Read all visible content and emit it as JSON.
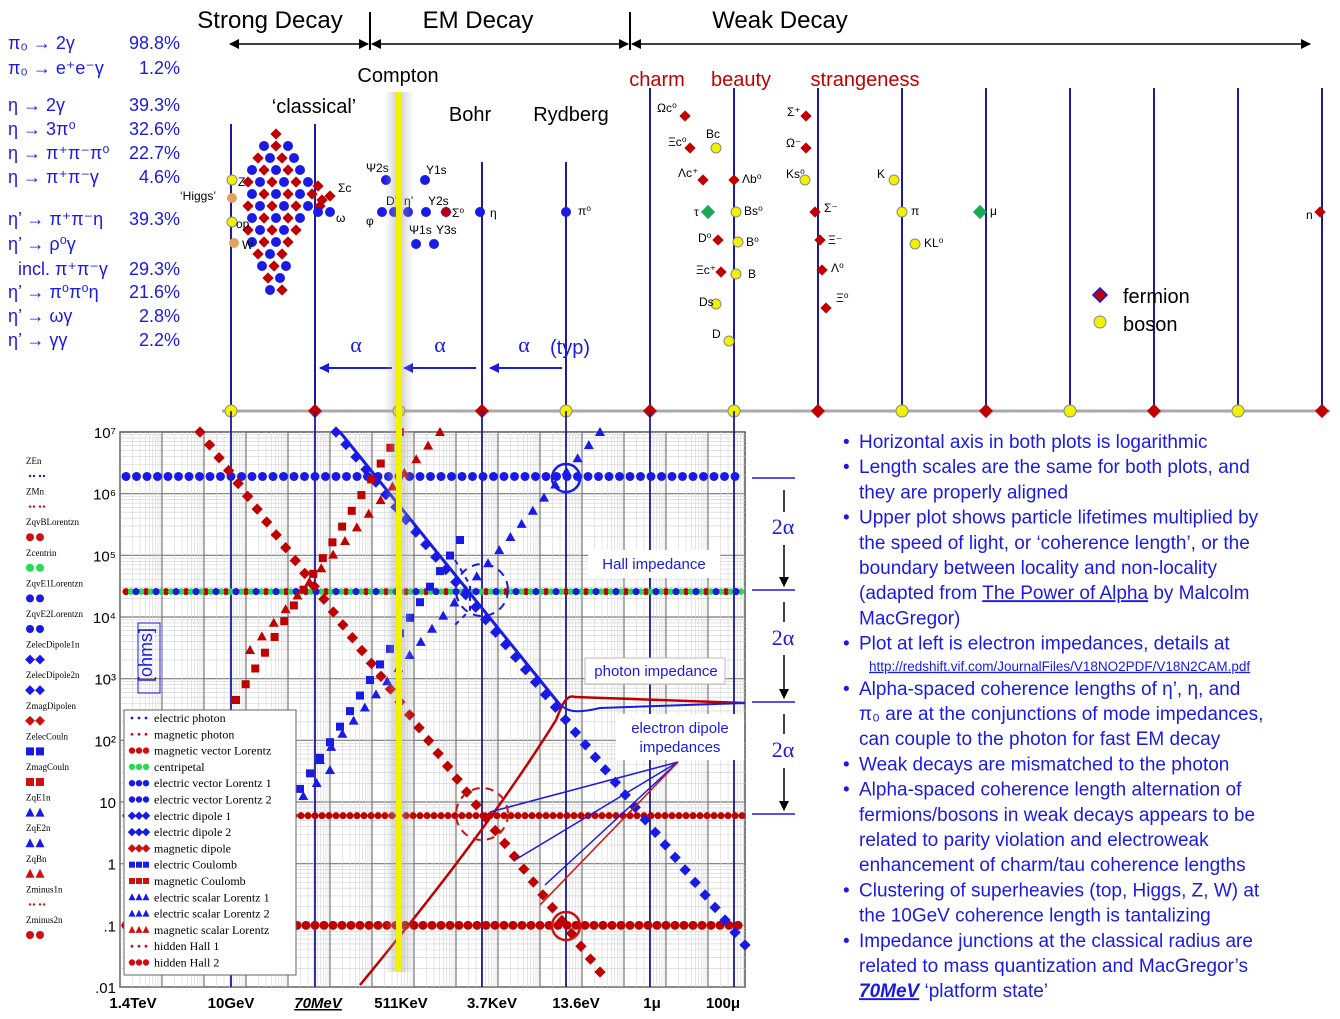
{
  "header": {
    "strong": "Strong Decay",
    "em": "EM Decay",
    "weak": "Weak Decay",
    "compton": "Compton",
    "classical": "‘classical’",
    "bohr": "Bohr",
    "rydberg": "Rydberg",
    "charm": "charm",
    "beauty": "beauty",
    "strangeness": "strangeness"
  },
  "decays": [
    {
      "lhs": "π₀ → 2γ",
      "pct": "98.8%"
    },
    {
      "lhs": "π₀ → e⁺e⁻γ",
      "pct": "1.2%"
    },
    {
      "lhs": "η → 2γ",
      "pct": "39.3%"
    },
    {
      "lhs": "η → 3π⁰",
      "pct": "32.6%"
    },
    {
      "lhs": "η → π⁺π⁻π⁰",
      "pct": "22.7%"
    },
    {
      "lhs": "η → π⁺π⁻γ",
      "pct": "4.6%"
    },
    {
      "lhs": "η’ → π⁺π⁻η",
      "pct": "39.3%"
    },
    {
      "lhs": "η’ → ρ⁰γ",
      "pct": ""
    },
    {
      "lhs": "incl. π⁺π⁻γ",
      "pct": "29.3%"
    },
    {
      "lhs": "η’ → π⁰π⁰η",
      "pct": "21.6%"
    },
    {
      "lhs": "η’ → ωγ",
      "pct": "2.8%"
    },
    {
      "lhs": "η’ → γγ",
      "pct": "2.2%"
    }
  ],
  "alpha": {
    "a1": "α",
    "a2": "α",
    "a3": "α",
    "typ": "(typ)",
    "two_alpha": "2α"
  },
  "particles": {
    "z": "Z",
    "higgs": "‘Higgs’",
    "top": "op",
    "w": "W",
    "sigma_c": "Σc",
    "omega": "ω",
    "psi2s": "Ψ2s",
    "ups1s": "Υ1s",
    "d_prime": "D’",
    "eta_prime": "η’",
    "ups2s": "Υ2s",
    "sigma0": "Σ⁰",
    "eta": "η",
    "phi": "φ",
    "psi1s": "Ψ1s",
    "ups3s": "Υ3s",
    "pi0": "π⁰",
    "omega_c": "Ωc⁰",
    "xi_c0": "Ξc⁰",
    "bc": "Bc",
    "lambda_c": "Λc⁺",
    "lambda_b": "Λb⁰",
    "tau": "τ",
    "bs": "Bs⁰",
    "d0": "D⁰",
    "b0": "B⁰",
    "xi_cp": "Ξc⁺",
    "b": "B",
    "ds": "Ds",
    "d": "D",
    "sigma_p": "Σ⁺",
    "omega_m": "Ω⁻",
    "ks": "Ks⁰",
    "sigma_m": "Σ⁻",
    "xi_m": "Ξ⁻",
    "lambda0": "Λ⁰",
    "xi0": "Ξ⁰",
    "k": "K",
    "pi": "π",
    "kl": "KL⁰",
    "mu": "μ",
    "n": "n"
  },
  "upper_legend": {
    "fermion": "fermion",
    "boson": "boson"
  },
  "chart_data": {
    "type": "scatter",
    "xlabels": [
      "1.4TeV",
      "10GeV",
      "70MeV",
      "511KeV",
      "3.7KeV",
      "13.6eV",
      "1μ",
      "100μ"
    ],
    "ylabel": "[ohms]",
    "yticks": [
      "10⁷",
      "10⁶",
      "10⁵",
      "10⁴",
      "10³",
      "10²",
      "10",
      "1",
      ".1",
      ".01"
    ],
    "ylim": [
      0.01,
      10000000
    ],
    "yscale": "log",
    "annotations": {
      "hall": "Hall impedance",
      "photon": "photon impedance",
      "dipole1": "electron dipole",
      "dipole2": "impedances"
    },
    "legend": [
      {
        "name": "electric photon",
        "color": "#1a1ae6",
        "marker": "dot"
      },
      {
        "name": "magnetic photon",
        "color": "#d01010",
        "marker": "dot"
      },
      {
        "name": "magnetic vector Lorentz",
        "color": "#d01010",
        "marker": "circle"
      },
      {
        "name": "centripetal",
        "color": "#22dd55",
        "marker": "circle"
      },
      {
        "name": "electric vector Lorentz 1",
        "color": "#1a1ae6",
        "marker": "circle"
      },
      {
        "name": "electric vector Lorentz 2",
        "color": "#1a1ae6",
        "marker": "circle"
      },
      {
        "name": "electric dipole 1",
        "color": "#1a1ae6",
        "marker": "diamond"
      },
      {
        "name": "electric dipole 2",
        "color": "#1a1ae6",
        "marker": "diamond"
      },
      {
        "name": "magnetic dipole",
        "color": "#d01010",
        "marker": "diamond"
      },
      {
        "name": "electric Coulomb",
        "color": "#1a1ae6",
        "marker": "square"
      },
      {
        "name": "magnetic Coulomb",
        "color": "#d01010",
        "marker": "square"
      },
      {
        "name": "electric scalar Lorentz 1",
        "color": "#1a1ae6",
        "marker": "triangle"
      },
      {
        "name": "electric scalar Lorentz 2",
        "color": "#1a1ae6",
        "marker": "triangle"
      },
      {
        "name": "magnetic scalar Lorentz",
        "color": "#d01010",
        "marker": "triangle"
      },
      {
        "name": "hidden Hall 1",
        "color": "#d01010",
        "marker": "dot"
      },
      {
        "name": "hidden Hall 2",
        "color": "#d01010",
        "marker": "circle"
      }
    ],
    "left_keys": [
      {
        "name": "ZEn",
        "color": "#1a1ae6",
        "marker": "dot"
      },
      {
        "name": "ZMn",
        "color": "#d01010",
        "marker": "dot"
      },
      {
        "name": "ZqvBLorentzn",
        "color": "#d01010",
        "marker": "circle"
      },
      {
        "name": "Zcentrin",
        "color": "#22dd55",
        "marker": "circle"
      },
      {
        "name": "ZqvE1Lorentzn",
        "color": "#1a1ae6",
        "marker": "circle"
      },
      {
        "name": "ZqvE2Lorentzn",
        "color": "#1a1ae6",
        "marker": "circle"
      },
      {
        "name": "ZelecDipole1n",
        "color": "#1a1ae6",
        "marker": "diamond"
      },
      {
        "name": "ZelecDipole2n",
        "color": "#1a1ae6",
        "marker": "diamond"
      },
      {
        "name": "ZmagDipolen",
        "color": "#d01010",
        "marker": "diamond"
      },
      {
        "name": "ZelecCouln",
        "color": "#1a1ae6",
        "marker": "square"
      },
      {
        "name": "ZmagCouln",
        "color": "#d01010",
        "marker": "square"
      },
      {
        "name": "ZqE1n",
        "color": "#1a1ae6",
        "marker": "triangle"
      },
      {
        "name": "ZqE2n",
        "color": "#1a1ae6",
        "marker": "triangle"
      },
      {
        "name": "ZqBn",
        "color": "#d01010",
        "marker": "triangle"
      },
      {
        "name": "Zminus1n",
        "color": "#d01010",
        "marker": "dot"
      },
      {
        "name": "Zminus2n",
        "color": "#d01010",
        "marker": "circle"
      }
    ]
  },
  "notes": [
    "Horizontal axis in both plots is logarithmic",
    "Length scales are the same for both plots, and they are properly aligned",
    "Upper plot shows particle lifetimes multiplied by the speed of light, or ‘coherence length’, or the boundary between locality and non-locality (adapted from The Power of Alpha by Malcolm MacGregor)",
    "Plot at left is electron impedances, details at",
    "Alpha-spaced coherence lengths of  η’, η, and π₀ are at the conjunctions of mode impedances, can couple to the photon for fast EM decay",
    "Weak decays are mismatched to the photon",
    "Alpha-spaced coherence  length alternation of fermions/bosons in weak decays appears to be related to parity violation and electroweak enhancement of charm/tau coherence lengths",
    "Clustering of superheavies (top, Higgs, Z, W) at the 10GeV coherence length is tantalizing",
    "Impedance junctions at the classical radius are related to mass quantization and MacGregor’s 70MeV ‘platform state’"
  ],
  "url": "http://redshift.vif.com/JournalFiles/V18NO2PDF/V18N2CAM.pdf",
  "colors": {
    "blue": "#1a1ae6",
    "red": "#c00000",
    "yellow": "#f2f200",
    "green": "#22dd55",
    "navy": "#1a1a9a"
  }
}
